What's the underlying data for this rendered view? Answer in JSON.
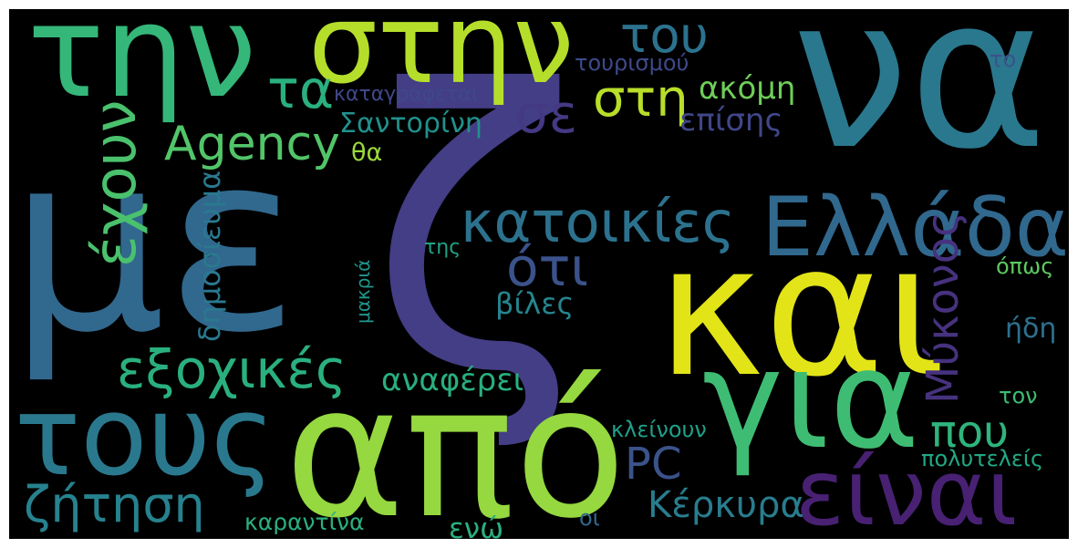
{
  "words": [
    {
      "id": "w_na",
      "text": "να",
      "color": "#2a788e"
    },
    {
      "id": "w_me",
      "text": "με",
      "color": "#31688e"
    },
    {
      "id": "w_kai",
      "text": "και",
      "color": "#e2e418"
    },
    {
      "id": "w_z",
      "text": "ζ",
      "color": "#433e85"
    },
    {
      "id": "w_apo",
      "text": "από",
      "color": "#95d840"
    },
    {
      "id": "w_tin",
      "text": "την",
      "color": "#35b779"
    },
    {
      "id": "w_stin",
      "text": "στην",
      "color": "#b5de2b"
    },
    {
      "id": "w_gia",
      "text": "για",
      "color": "#3fbc73"
    },
    {
      "id": "w_tous",
      "text": "τους",
      "color": "#2a788e"
    },
    {
      "id": "w_ellada",
      "text": "Ελλάδα",
      "color": "#31688e"
    },
    {
      "id": "w_einai",
      "text": "είναι",
      "color": "#482173"
    },
    {
      "id": "w_katoikies",
      "text": "κατοικίες",
      "color": "#2c728e"
    },
    {
      "id": "w_exochikes",
      "text": "εξοχικές",
      "color": "#2ab07f"
    },
    {
      "id": "w_echoun",
      "text": "έχουν",
      "color": "#4ac16d"
    },
    {
      "id": "w_zitisi",
      "text": "ζήτηση",
      "color": "#26828e"
    },
    {
      "id": "w_agency",
      "text": "Agency",
      "color": "#52c569"
    },
    {
      "id": "w_oti",
      "text": "ότι",
      "color": "#3b528b"
    },
    {
      "id": "w_ta",
      "text": "τα",
      "color": "#2ab07f"
    },
    {
      "id": "w_se",
      "text": "σε",
      "color": "#443983"
    },
    {
      "id": "w_sti",
      "text": "στη",
      "color": "#b8de29"
    },
    {
      "id": "w_tou",
      "text": "του",
      "color": "#2c728e"
    },
    {
      "id": "w_pou",
      "text": "που",
      "color": "#2fb47c"
    },
    {
      "id": "w_mykonos",
      "text": "Μύκονος",
      "color": "#46327e"
    },
    {
      "id": "w_pc",
      "text": "PC",
      "color": "#3b528b"
    },
    {
      "id": "w_kerkyra",
      "text": "Κέρκυρα",
      "color": "#287d8e"
    },
    {
      "id": "w_santorini",
      "text": "Σαντορίνη",
      "color": "#21918c"
    },
    {
      "id": "w_anaferei",
      "text": "αναφέρει",
      "color": "#29af7f"
    },
    {
      "id": "w_viles",
      "text": "βίλες",
      "color": "#25858e"
    },
    {
      "id": "w_akomi",
      "text": "ακόμη",
      "color": "#6ece58"
    },
    {
      "id": "w_episis",
      "text": "επίσης",
      "color": "#404688"
    },
    {
      "id": "w_dimosievma",
      "text": "δημοσίευμα",
      "color": "#2a788e"
    },
    {
      "id": "w_tourismou",
      "text": "τουρισμού",
      "color": "#3e4a89"
    },
    {
      "id": "w_katagrafetai",
      "text": "καταγράφεται",
      "color": "#3f4889"
    },
    {
      "id": "w_tha",
      "text": "θα",
      "color": "#9bd93c"
    },
    {
      "id": "w_makria",
      "text": "μακριά",
      "color": "#1f988b"
    },
    {
      "id": "w_tis",
      "text": "της",
      "color": "#20a386"
    },
    {
      "id": "w_idi",
      "text": "ήδη",
      "color": "#2d708e"
    },
    {
      "id": "w_opos",
      "text": "όπως",
      "color": "#5ec962"
    },
    {
      "id": "w_to",
      "text": "το",
      "color": "#3b528b"
    },
    {
      "id": "w_ton",
      "text": "τον",
      "color": "#3dbc74"
    },
    {
      "id": "w_kleinoun",
      "text": "κλείνουν",
      "color": "#1fa088"
    },
    {
      "id": "w_polyteleis",
      "text": "πολυτελείς",
      "color": "#22a884"
    },
    {
      "id": "w_karantina",
      "text": "καραντίνα",
      "color": "#2ab07f"
    },
    {
      "id": "w_eno",
      "text": "ενώ",
      "color": "#2ab07f"
    },
    {
      "id": "w_oi",
      "text": "οι",
      "color": "#31688e"
    }
  ]
}
